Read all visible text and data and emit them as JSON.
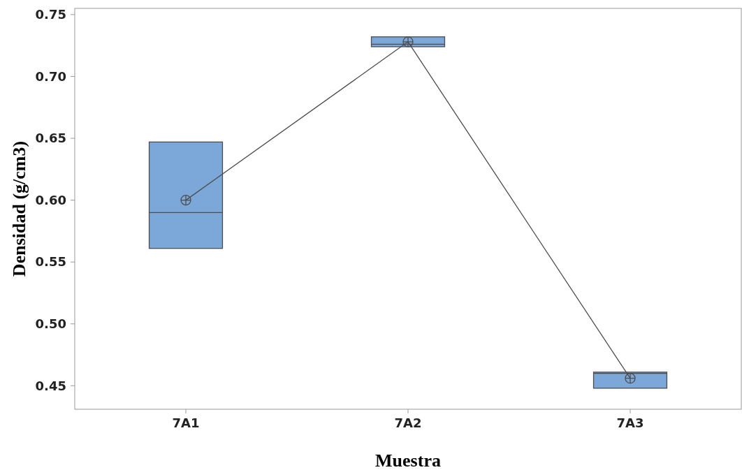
{
  "chart_data": {
    "type": "box",
    "xlabel": "Muestra",
    "ylabel": "Densidad (g/cm3)",
    "categories": [
      "7A1",
      "7A2",
      "7A3"
    ],
    "boxes": [
      {
        "low": 0.561,
        "q1": 0.561,
        "median": 0.59,
        "q3": 0.647,
        "high": 0.647
      },
      {
        "low": 0.724,
        "q1": 0.724,
        "median": 0.726,
        "q3": 0.732,
        "high": 0.732
      },
      {
        "low": 0.448,
        "q1": 0.448,
        "median": 0.46,
        "q3": 0.461,
        "high": 0.461
      }
    ],
    "color": "#7ba7d9",
    "series": [
      {
        "type": "line",
        "color": "#4d4d4d",
        "values": [
          0.6,
          0.728,
          0.456
        ]
      }
    ],
    "marker": "circle",
    "ylim": [
      0.431,
      0.755
    ],
    "yticks": [
      {
        "value": 0.45,
        "label": "0.45"
      },
      {
        "value": 0.5,
        "label": "0.50"
      },
      {
        "value": 0.55,
        "label": "0.55"
      },
      {
        "value": 0.6,
        "label": "0.60"
      },
      {
        "value": 0.65,
        "label": "0.65"
      },
      {
        "value": 0.7,
        "label": "0.70"
      },
      {
        "value": 0.75,
        "label": "0.75"
      }
    ]
  }
}
